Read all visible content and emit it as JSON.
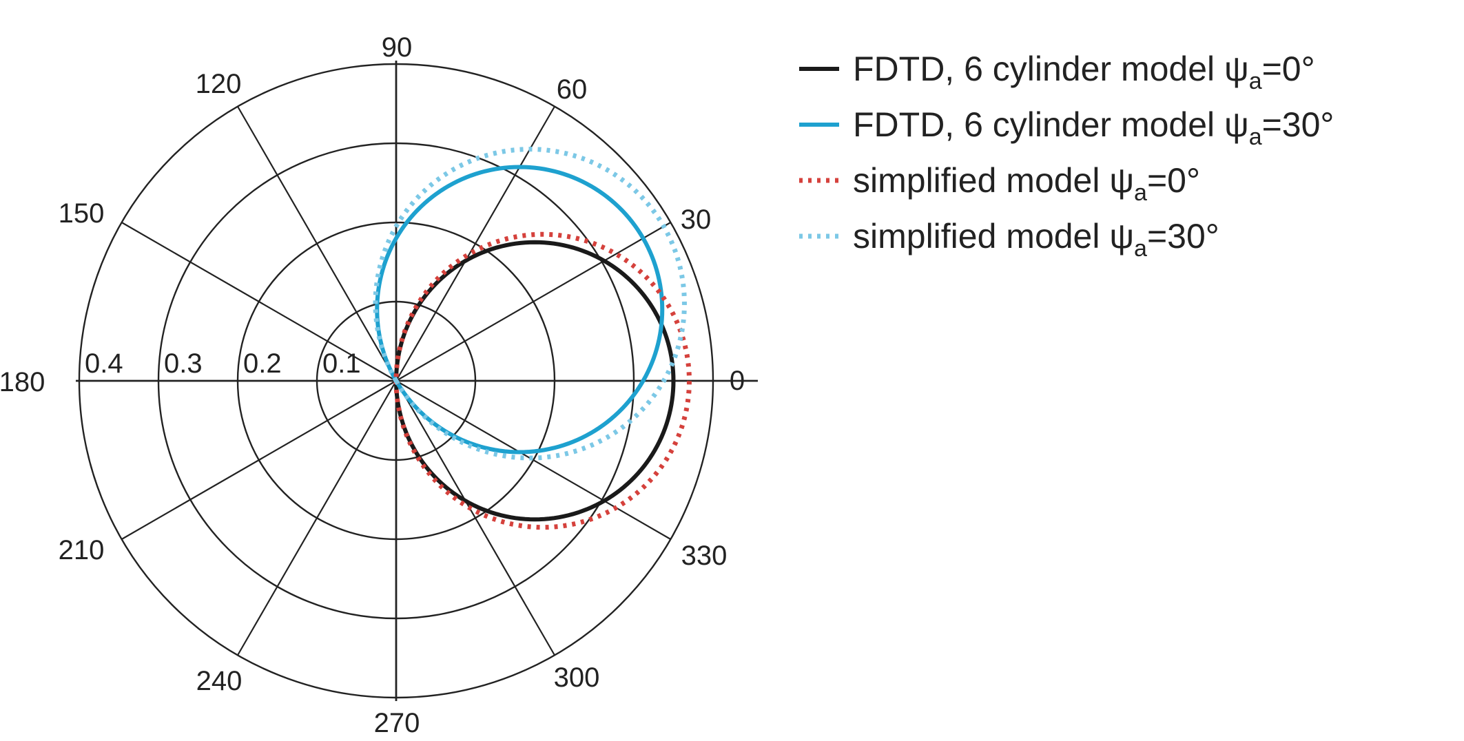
{
  "chart_data": {
    "type": "polar-line",
    "title": "",
    "angle_unit": "degrees",
    "angle_ticks": [
      0,
      30,
      60,
      90,
      120,
      150,
      180,
      210,
      240,
      270,
      300,
      330
    ],
    "angle_tick_labels": [
      "0",
      "30",
      "60",
      "90",
      "120",
      "150",
      "180",
      "210",
      "240",
      "270",
      "300",
      "330"
    ],
    "radial_ticks": [
      0.1,
      0.2,
      0.3,
      0.4
    ],
    "radial_tick_labels": [
      "0.1",
      "0.2",
      "0.3",
      "0.4"
    ],
    "rlim": [
      0,
      0.4
    ],
    "grid": true,
    "legend_position": "top-right",
    "series": [
      {
        "name": "FDTD, 6 cylinder model ψa=0°",
        "label_main": "FDTD, 6 cylinder model ψ",
        "label_sub": "a",
        "label_end": "=0°",
        "color": "#1a1a1a",
        "style": "solid",
        "peak_angle": 0,
        "peak_value": 0.35,
        "shape": "cosine"
      },
      {
        "name": "FDTD, 6 cylinder model ψa=30°",
        "label_main": "FDTD, 6 cylinder model ψ",
        "label_sub": "a",
        "label_end": "=30°",
        "color": "#1ea1cf",
        "style": "solid",
        "peak_angle": 30,
        "peak_value": 0.36,
        "shape": "cosine"
      },
      {
        "name": "simplified model ψa=0°",
        "label_main": "simplified model ψ",
        "label_sub": "a",
        "label_end": "=0°",
        "color": "#d5413c",
        "style": "dotted",
        "peak_angle": 0,
        "peak_value": 0.37,
        "shape": "cosine"
      },
      {
        "name": "simplified model ψa=30°",
        "label_main": "simplified model ψ",
        "label_sub": "a",
        "label_end": "=30°",
        "color": "#7cc8e6",
        "style": "dotted",
        "peak_angle": 30,
        "peak_value": 0.39,
        "shape": "cosine"
      }
    ]
  }
}
